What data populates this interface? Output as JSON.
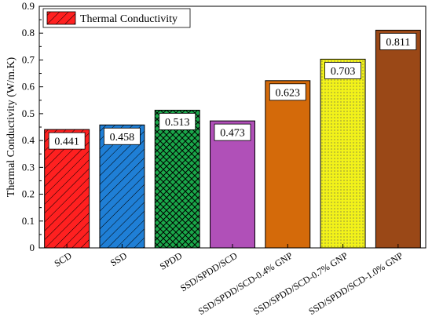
{
  "chart_data": {
    "type": "bar",
    "ylabel": "Thermal Conductivity (W/m.K)",
    "xlabel": "",
    "ylim": [
      0,
      0.9
    ],
    "yticks": [
      0,
      0.1,
      0.2,
      0.3,
      0.4,
      0.5,
      0.6,
      0.7,
      0.8,
      0.9
    ],
    "ytick_labels": [
      "0",
      "0.1",
      "0.2",
      "0.3",
      "0.4",
      "0.5",
      "0.6",
      "0.7",
      "0.8",
      "0.9"
    ],
    "legend": {
      "label": "Thermal Conductivity",
      "position": "top-left"
    },
    "grid": false,
    "categories": [
      "SCD",
      "SSD",
      "SPDD",
      "SSD/SPDD/SCD",
      "SSD/SPDD/SCD-0.4% GNP",
      "SSD/SPDD/SCD-0.7% GNP",
      "SSD/SPDD/SCD-1.0% GNP"
    ],
    "values": [
      0.441,
      0.458,
      0.513,
      0.473,
      0.623,
      0.703,
      0.811
    ],
    "value_labels": [
      "0.441",
      "0.458",
      "0.513",
      "0.473",
      "0.623",
      "0.703",
      "0.811"
    ],
    "bar_colors": [
      "#ff2020",
      "#1f7fd6",
      "#1aa84a",
      "#b050b8",
      "#d46a0a",
      "#f2f21a",
      "#a8501a"
    ],
    "bar_patterns": [
      "diag-right",
      "diag-right",
      "crosshatch",
      "none",
      "none",
      "dots",
      "vertical"
    ]
  }
}
